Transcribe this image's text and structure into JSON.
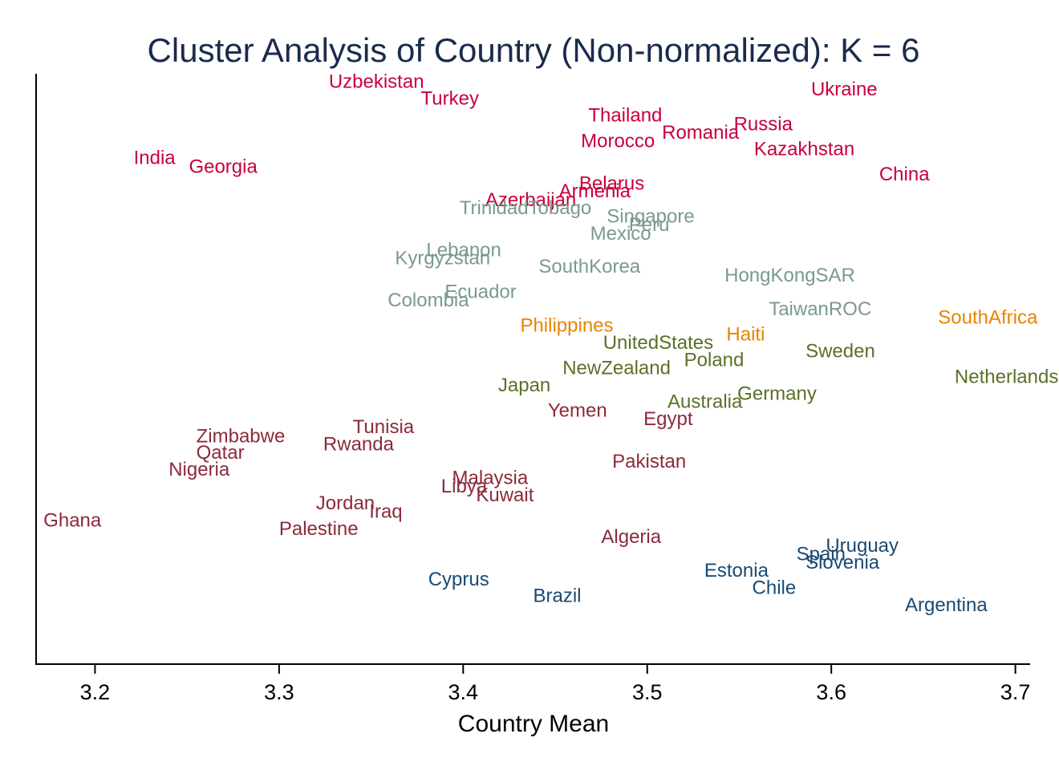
{
  "chart_data": {
    "type": "scatter",
    "title": "Cluster Analysis of Country (Non-normalized): K = 6",
    "xlabel": "Country Mean",
    "ylabel": "",
    "xlim": [
      3.168,
      3.708
    ],
    "ylim": [
      0,
      10
    ],
    "xticks": [
      3.2,
      3.3,
      3.4,
      3.5,
      3.6,
      3.7
    ],
    "xtick_labels": [
      "3.2",
      "3.3",
      "3.4",
      "3.5",
      "3.6",
      "3.7"
    ],
    "y_axis_ticks_shown": false,
    "grid": false,
    "legend": "none",
    "marker": "text-label",
    "label_anchor": "left",
    "cluster_colors": {
      "1": "#c8003c",
      "2": "#7a9a8a",
      "3": "#e88400",
      "4": "#5a7028",
      "5": "#8c2a3a",
      "6": "#1a4a72"
    },
    "points": [
      {
        "label": "Uzbekistan",
        "x": 3.327,
        "y": 9.76,
        "cluster": 1
      },
      {
        "label": "Turkey",
        "x": 3.377,
        "y": 9.48,
        "cluster": 1
      },
      {
        "label": "Ukraine",
        "x": 3.589,
        "y": 9.63,
        "cluster": 1
      },
      {
        "label": "Thailand",
        "x": 3.468,
        "y": 9.19,
        "cluster": 1
      },
      {
        "label": "Russia",
        "x": 3.547,
        "y": 9.04,
        "cluster": 1
      },
      {
        "label": "Romania",
        "x": 3.508,
        "y": 8.9,
        "cluster": 1
      },
      {
        "label": "Morocco",
        "x": 3.464,
        "y": 8.76,
        "cluster": 1
      },
      {
        "label": "Kazakhstan",
        "x": 3.558,
        "y": 8.62,
        "cluster": 1
      },
      {
        "label": "India",
        "x": 3.221,
        "y": 8.47,
        "cluster": 1
      },
      {
        "label": "Georgia",
        "x": 3.251,
        "y": 8.32,
        "cluster": 1
      },
      {
        "label": "China",
        "x": 3.626,
        "y": 8.19,
        "cluster": 1
      },
      {
        "label": "Belarus",
        "x": 3.463,
        "y": 8.04,
        "cluster": 1
      },
      {
        "label": "Armenia",
        "x": 3.452,
        "y": 7.91,
        "cluster": 1
      },
      {
        "label": "Azerbaijan",
        "x": 3.412,
        "y": 7.76,
        "cluster": 1
      },
      {
        "label": "TrinidadTobago",
        "x": 3.398,
        "y": 7.62,
        "cluster": 2
      },
      {
        "label": "Singapore",
        "x": 3.478,
        "y": 7.48,
        "cluster": 2
      },
      {
        "label": "Peru",
        "x": 3.49,
        "y": 7.34,
        "cluster": 2
      },
      {
        "label": "Mexico",
        "x": 3.469,
        "y": 7.19,
        "cluster": 2
      },
      {
        "label": "Lebanon",
        "x": 3.38,
        "y": 6.91,
        "cluster": 2
      },
      {
        "label": "Kyrgyzstan",
        "x": 3.363,
        "y": 6.77,
        "cluster": 2
      },
      {
        "label": "SouthKorea",
        "x": 3.441,
        "y": 6.63,
        "cluster": 2
      },
      {
        "label": "HongKongSAR",
        "x": 3.542,
        "y": 6.48,
        "cluster": 2
      },
      {
        "label": "Ecuador",
        "x": 3.39,
        "y": 6.2,
        "cluster": 2
      },
      {
        "label": "Colombia",
        "x": 3.359,
        "y": 6.06,
        "cluster": 2
      },
      {
        "label": "TaiwanROC",
        "x": 3.566,
        "y": 5.91,
        "cluster": 2
      },
      {
        "label": "SouthAfrica",
        "x": 3.658,
        "y": 5.77,
        "cluster": 3
      },
      {
        "label": "Philippines",
        "x": 3.431,
        "y": 5.63,
        "cluster": 3
      },
      {
        "label": "Haiti",
        "x": 3.543,
        "y": 5.48,
        "cluster": 3
      },
      {
        "label": "UnitedStates",
        "x": 3.476,
        "y": 5.34,
        "cluster": 4
      },
      {
        "label": "Sweden",
        "x": 3.586,
        "y": 5.2,
        "cluster": 4
      },
      {
        "label": "Poland",
        "x": 3.52,
        "y": 5.05,
        "cluster": 4
      },
      {
        "label": "NewZealand",
        "x": 3.454,
        "y": 4.91,
        "cluster": 4
      },
      {
        "label": "Netherlands",
        "x": 3.667,
        "y": 4.76,
        "cluster": 4
      },
      {
        "label": "Japan",
        "x": 3.419,
        "y": 4.62,
        "cluster": 4
      },
      {
        "label": "Germany",
        "x": 3.549,
        "y": 4.48,
        "cluster": 4
      },
      {
        "label": "Australia",
        "x": 3.511,
        "y": 4.34,
        "cluster": 4
      },
      {
        "label": "Yemen",
        "x": 3.446,
        "y": 4.19,
        "cluster": 5
      },
      {
        "label": "Egypt",
        "x": 3.498,
        "y": 4.05,
        "cluster": 5
      },
      {
        "label": "Tunisia",
        "x": 3.34,
        "y": 3.91,
        "cluster": 5
      },
      {
        "label": "Zimbabwe",
        "x": 3.255,
        "y": 3.76,
        "cluster": 5
      },
      {
        "label": "Rwanda",
        "x": 3.324,
        "y": 3.62,
        "cluster": 5
      },
      {
        "label": "Qatar",
        "x": 3.255,
        "y": 3.48,
        "cluster": 5
      },
      {
        "label": "Pakistan",
        "x": 3.481,
        "y": 3.33,
        "cluster": 5
      },
      {
        "label": "Nigeria",
        "x": 3.24,
        "y": 3.19,
        "cluster": 5
      },
      {
        "label": "Malaysia",
        "x": 3.394,
        "y": 3.05,
        "cluster": 5
      },
      {
        "label": "Libya",
        "x": 3.388,
        "y": 2.91,
        "cluster": 5
      },
      {
        "label": "Kuwait",
        "x": 3.407,
        "y": 2.76,
        "cluster": 5
      },
      {
        "label": "Jordan",
        "x": 3.32,
        "y": 2.62,
        "cluster": 5
      },
      {
        "label": "Iraq",
        "x": 3.349,
        "y": 2.48,
        "cluster": 5
      },
      {
        "label": "Ghana",
        "x": 3.172,
        "y": 2.33,
        "cluster": 5
      },
      {
        "label": "Palestine",
        "x": 3.3,
        "y": 2.19,
        "cluster": 5
      },
      {
        "label": "Algeria",
        "x": 3.475,
        "y": 2.05,
        "cluster": 5
      },
      {
        "label": "Uruguay",
        "x": 3.597,
        "y": 1.9,
        "cluster": 6
      },
      {
        "label": "Spain",
        "x": 3.581,
        "y": 1.76,
        "cluster": 6
      },
      {
        "label": "Slovenia",
        "x": 3.586,
        "y": 1.62,
        "cluster": 6
      },
      {
        "label": "Estonia",
        "x": 3.531,
        "y": 1.48,
        "cluster": 6
      },
      {
        "label": "Cyprus",
        "x": 3.381,
        "y": 1.33,
        "cluster": 6
      },
      {
        "label": "Chile",
        "x": 3.557,
        "y": 1.19,
        "cluster": 6
      },
      {
        "label": "Brazil",
        "x": 3.438,
        "y": 1.05,
        "cluster": 6
      },
      {
        "label": "Argentina",
        "x": 3.64,
        "y": 0.9,
        "cluster": 6
      }
    ]
  }
}
